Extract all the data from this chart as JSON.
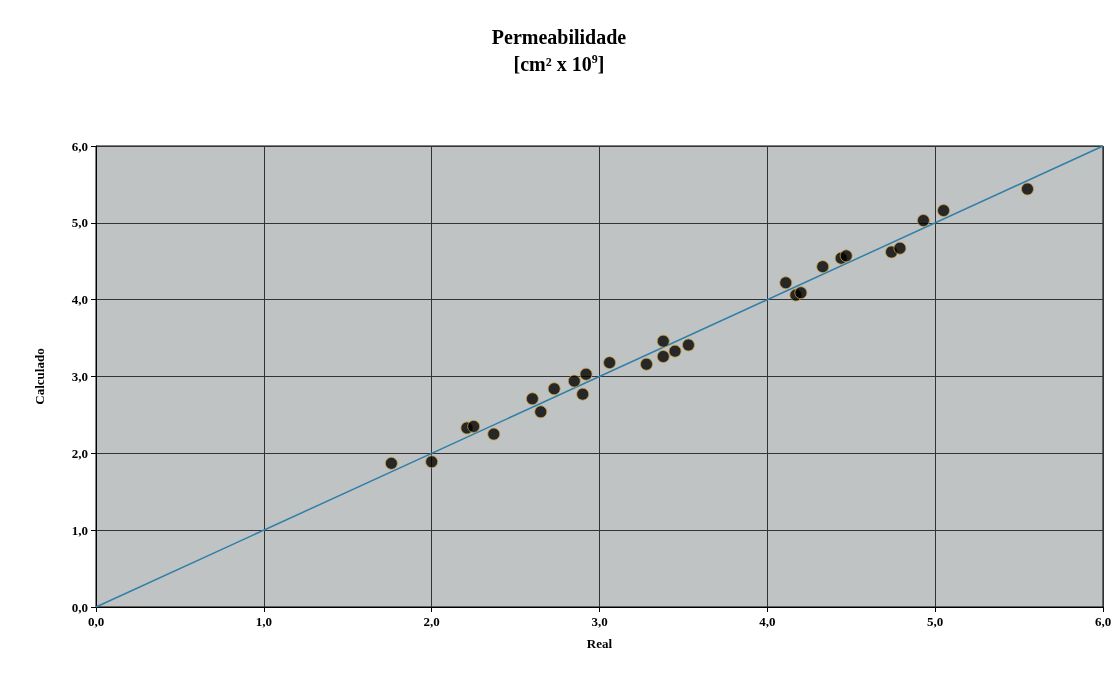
{
  "chart_data": {
    "type": "scatter",
    "title": "Permeabilidade",
    "subtitle": "[cm² x 10$^{9}$]",
    "xlabel": "Real",
    "ylabel": "Calculado",
    "series": [
      {
        "color": "#000000",
        "marker": "circle",
        "x": [
          1.76,
          2.0,
          2.21,
          2.25,
          2.37,
          2.6,
          2.65,
          2.73,
          2.85,
          2.92,
          2.9,
          3.06,
          3.28,
          3.38,
          3.38,
          3.45,
          3.53,
          4.11,
          4.17,
          4.2,
          4.33,
          4.44,
          4.47,
          4.74,
          4.79,
          4.93,
          5.05,
          5.55
        ],
        "values": [
          1.87,
          1.89,
          2.33,
          2.35,
          2.25,
          2.71,
          2.54,
          2.84,
          2.94,
          3.03,
          2.77,
          3.18,
          3.16,
          3.26,
          3.46,
          3.33,
          3.41,
          4.22,
          4.06,
          4.09,
          4.43,
          4.54,
          4.57,
          4.62,
          4.67,
          5.03,
          5.16,
          5.44
        ]
      },
      {
        "type": "line",
        "marker": "none",
        "color": "#2f7fa8",
        "x": [
          0,
          6
        ],
        "values": [
          0,
          6
        ]
      }
    ],
    "xlim": [
      0,
      6
    ],
    "ylim": [
      0,
      6
    ],
    "xticks": [
      {
        "value": 0,
        "label": "0,0"
      },
      {
        "value": 1,
        "label": "1,0"
      },
      {
        "value": 2,
        "label": "2,0"
      },
      {
        "value": 3,
        "label": "3,0"
      },
      {
        "value": 4,
        "label": "4,0"
      },
      {
        "value": 5,
        "label": "5,0"
      },
      {
        "value": 6,
        "label": "6,0"
      }
    ],
    "yticks": [
      {
        "value": 0,
        "label": "0,0"
      },
      {
        "value": 1,
        "label": "1,0"
      },
      {
        "value": 2,
        "label": "2,0"
      },
      {
        "value": 3,
        "label": "3,0"
      },
      {
        "value": 4,
        "label": "4,0"
      },
      {
        "value": 5,
        "label": "5,0"
      },
      {
        "value": 6,
        "label": "6,0"
      }
    ],
    "grid": true
  }
}
